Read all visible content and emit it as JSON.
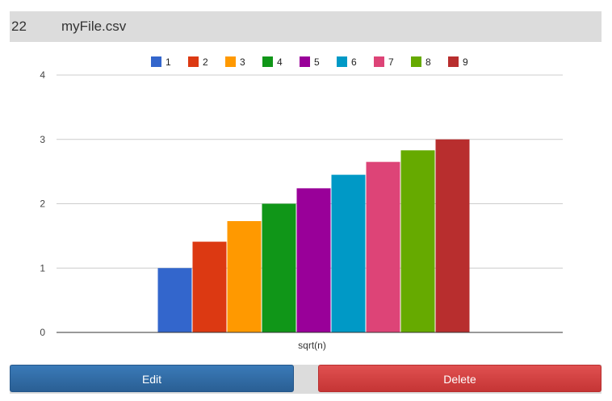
{
  "header": {
    "id": "22",
    "filename": "myFile.csv"
  },
  "buttons": {
    "edit": "Edit",
    "delete": "Delete"
  },
  "chart_data": {
    "type": "bar",
    "categories": [
      "sqrt(n)"
    ],
    "xlabel": "sqrt(n)",
    "ylabel": "",
    "ylim": [
      0,
      4
    ],
    "yticks": [
      "0",
      "1",
      "2",
      "3",
      "4"
    ],
    "grid": true,
    "legend_position": "top",
    "series": [
      {
        "name": "1",
        "values": [
          1.0
        ],
        "color": "#3366cc"
      },
      {
        "name": "2",
        "values": [
          1.41
        ],
        "color": "#dc3912"
      },
      {
        "name": "3",
        "values": [
          1.73
        ],
        "color": "#ff9900"
      },
      {
        "name": "4",
        "values": [
          2.0
        ],
        "color": "#109618"
      },
      {
        "name": "5",
        "values": [
          2.24
        ],
        "color": "#990099"
      },
      {
        "name": "6",
        "values": [
          2.45
        ],
        "color": "#0099c6"
      },
      {
        "name": "7",
        "values": [
          2.65
        ],
        "color": "#dd4477"
      },
      {
        "name": "8",
        "values": [
          2.83
        ],
        "color": "#66aa00"
      },
      {
        "name": "9",
        "values": [
          3.0
        ],
        "color": "#b82e2e"
      }
    ]
  }
}
